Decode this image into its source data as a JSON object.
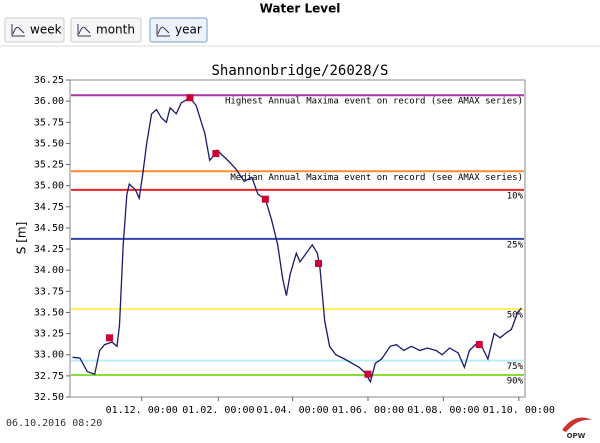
{
  "header": {
    "title": "Water Level",
    "buttons": [
      "week",
      "month",
      "year"
    ],
    "selected": 2
  },
  "chart_data": {
    "type": "line",
    "title": "Shannonbridge/26028/S",
    "y_label": "S [m]",
    "x": [
      "2015-10-06",
      "2015-10-12",
      "2015-10-18",
      "2015-10-24",
      "2015-10-28",
      "2015-11-01",
      "2015-11-07",
      "2015-11-11",
      "2015-11-13",
      "2015-11-16",
      "2015-11-19",
      "2015-11-21",
      "2015-11-26",
      "2015-11-29",
      "2015-12-02",
      "2015-12-05",
      "2015-12-09",
      "2015-12-13",
      "2015-12-17",
      "2015-12-21",
      "2015-12-24",
      "2015-12-29",
      "2016-01-02",
      "2016-01-09",
      "2016-01-14",
      "2016-01-21",
      "2016-01-25",
      "2016-01-28",
      "2016-01-31",
      "2016-02-05",
      "2016-02-10",
      "2016-02-15",
      "2016-02-22",
      "2016-02-28",
      "2016-03-04",
      "2016-03-10",
      "2016-03-15",
      "2016-03-20",
      "2016-03-24",
      "2016-03-27",
      "2016-03-30",
      "2016-04-04",
      "2016-04-07",
      "2016-04-12",
      "2016-04-17",
      "2016-04-21",
      "2016-04-23",
      "2016-04-27",
      "2016-05-01",
      "2016-05-06",
      "2016-05-13",
      "2016-05-19",
      "2016-05-25",
      "2016-05-30",
      "2016-06-03",
      "2016-06-07",
      "2016-06-12",
      "2016-06-19",
      "2016-06-24",
      "2016-06-30",
      "2016-07-06",
      "2016-07-13",
      "2016-07-19",
      "2016-07-26",
      "2016-07-31",
      "2016-08-06",
      "2016-08-13",
      "2016-08-18",
      "2016-08-22",
      "2016-08-27",
      "2016-09-01",
      "2016-09-06",
      "2016-09-11",
      "2016-09-16",
      "2016-09-20",
      "2016-09-25",
      "2016-09-30",
      "2016-10-03"
    ],
    "values": [
      32.97,
      32.96,
      32.8,
      32.77,
      33.05,
      33.12,
      33.15,
      33.1,
      33.35,
      34.3,
      34.9,
      35.02,
      34.95,
      34.85,
      35.15,
      35.5,
      35.85,
      35.9,
      35.8,
      35.75,
      35.92,
      35.85,
      35.98,
      36.04,
      35.95,
      35.62,
      35.3,
      35.35,
      35.42,
      35.35,
      35.28,
      35.2,
      35.05,
      35.1,
      34.9,
      34.84,
      34.6,
      34.3,
      33.9,
      33.7,
      33.95,
      34.2,
      34.1,
      34.2,
      34.3,
      34.2,
      34.05,
      33.4,
      33.1,
      33.0,
      32.95,
      32.9,
      32.85,
      32.78,
      32.68,
      32.9,
      32.95,
      33.1,
      33.12,
      33.05,
      33.1,
      33.05,
      33.08,
      33.05,
      33.0,
      33.08,
      33.02,
      32.85,
      33.05,
      33.12,
      33.1,
      32.95,
      33.25,
      33.2,
      33.25,
      33.3,
      33.5,
      33.55
    ],
    "color": "#1a1a6e",
    "markers": {
      "x": [
        "2015-11-05",
        "2016-01-09",
        "2016-01-30",
        "2016-03-10",
        "2016-04-22",
        "2016-06-01",
        "2016-08-30"
      ],
      "values": [
        33.2,
        36.04,
        35.38,
        34.84,
        34.08,
        32.77,
        33.12
      ],
      "color": "#cc0033"
    },
    "reference_lines": [
      {
        "value": 36.07,
        "label": "Highest Annual Maxima event on record (see AMAX series)",
        "color": "#aa33aa"
      },
      {
        "value": 35.17,
        "label": "Median Annual Maxima event on record (see AMAX series)",
        "color": "#ff8833"
      },
      {
        "value": 34.95,
        "label": "10%",
        "color": "#ee2222"
      },
      {
        "value": 34.37,
        "label": "25%",
        "color": "#3344aa"
      },
      {
        "value": 33.54,
        "label": "50%",
        "color": "#ffee55"
      },
      {
        "value": 32.93,
        "label": "75%",
        "color": "#bbeeff"
      },
      {
        "value": 32.76,
        "label": "90%",
        "color": "#88dd33"
      }
    ],
    "xlim": [
      "2015-10-04",
      "2016-10-06"
    ],
    "xticks": [
      {
        "value": "2015-12-01",
        "label": "01.12. 00:00"
      },
      {
        "value": "2016-02-01",
        "label": "01.02. 00:00"
      },
      {
        "value": "2016-04-01",
        "label": "01.04. 00:00"
      },
      {
        "value": "2016-06-01",
        "label": "01.06. 00:00"
      },
      {
        "value": "2016-08-01",
        "label": "01.08. 00:00"
      },
      {
        "value": "2016-10-01",
        "label": "01.10. 00:00"
      }
    ],
    "ylim": [
      32.5,
      36.25
    ],
    "yticks": [
      {
        "value": 32.5,
        "label": "32.50"
      },
      {
        "value": 32.75,
        "label": "32.75"
      },
      {
        "value": 33,
        "label": "33.00"
      },
      {
        "value": 33.25,
        "label": "33.25"
      },
      {
        "value": 33.5,
        "label": "33.50"
      },
      {
        "value": 33.75,
        "label": "33.75"
      },
      {
        "value": 34,
        "label": "34.00"
      },
      {
        "value": 34.25,
        "label": "34.25"
      },
      {
        "value": 34.5,
        "label": "34.50"
      },
      {
        "value": 34.75,
        "label": "34.75"
      },
      {
        "value": 35,
        "label": "35.00"
      },
      {
        "value": 35.25,
        "label": "35.25"
      },
      {
        "value": 35.5,
        "label": "35.50"
      },
      {
        "value": 35.75,
        "label": "35.75"
      },
      {
        "value": 36,
        "label": "36.00"
      },
      {
        "value": 36.25,
        "label": "36.25"
      }
    ]
  },
  "footer": {
    "timestamp": "06.10.2016 08:20",
    "logo": "OPW"
  }
}
